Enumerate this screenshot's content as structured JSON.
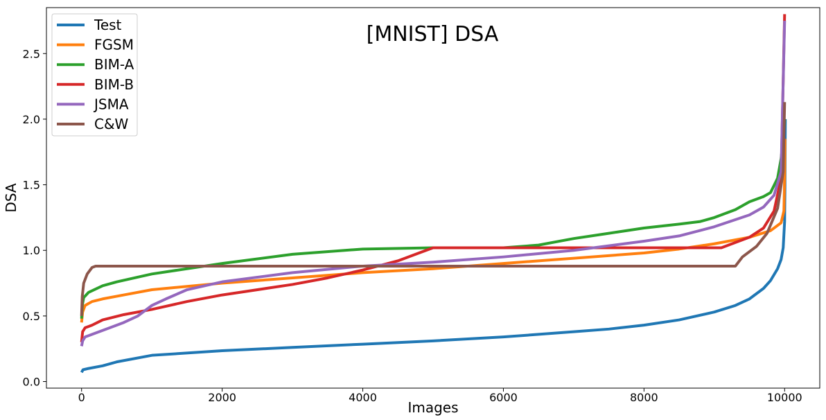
{
  "chart_data": {
    "type": "line",
    "title": "[MNIST] DSA",
    "xlabel": "Images",
    "ylabel": "DSA",
    "xlim": [
      -500,
      10500
    ],
    "ylim": [
      -0.05,
      2.85
    ],
    "xticks": [
      0,
      2000,
      4000,
      6000,
      8000,
      10000
    ],
    "xtick_labels": [
      "0",
      "2000",
      "4000",
      "6000",
      "8000",
      "10000"
    ],
    "yticks": [
      0.0,
      0.5,
      1.0,
      1.5,
      2.0,
      2.5
    ],
    "ytick_labels": [
      "0.0",
      "0.5",
      "1.0",
      "1.5",
      "2.0",
      "2.5"
    ],
    "grid": false,
    "legend_position": "top-left",
    "series": [
      {
        "name": "Test",
        "color": "#1f77b4",
        "points": [
          [
            0,
            0.07
          ],
          [
            20,
            0.09
          ],
          [
            100,
            0.1
          ],
          [
            300,
            0.12
          ],
          [
            500,
            0.15
          ],
          [
            1000,
            0.2
          ],
          [
            2000,
            0.235
          ],
          [
            3000,
            0.26
          ],
          [
            4000,
            0.285
          ],
          [
            5000,
            0.31
          ],
          [
            6000,
            0.34
          ],
          [
            7000,
            0.38
          ],
          [
            7500,
            0.4
          ],
          [
            8000,
            0.43
          ],
          [
            8500,
            0.47
          ],
          [
            9000,
            0.53
          ],
          [
            9300,
            0.58
          ],
          [
            9500,
            0.63
          ],
          [
            9700,
            0.71
          ],
          [
            9800,
            0.77
          ],
          [
            9900,
            0.86
          ],
          [
            9950,
            0.93
          ],
          [
            9980,
            1.02
          ],
          [
            10000,
            1.22
          ],
          [
            10005,
            1.5
          ],
          [
            10010,
            2.0
          ]
        ]
      },
      {
        "name": "FGSM",
        "color": "#ff7f0e",
        "points": [
          [
            0,
            0.45
          ],
          [
            15,
            0.53
          ],
          [
            50,
            0.58
          ],
          [
            150,
            0.61
          ],
          [
            300,
            0.63
          ],
          [
            600,
            0.66
          ],
          [
            1000,
            0.7
          ],
          [
            2000,
            0.75
          ],
          [
            3000,
            0.79
          ],
          [
            4000,
            0.83
          ],
          [
            5000,
            0.86
          ],
          [
            6000,
            0.9
          ],
          [
            7000,
            0.94
          ],
          [
            8000,
            0.98
          ],
          [
            8500,
            1.01
          ],
          [
            9000,
            1.05
          ],
          [
            9500,
            1.1
          ],
          [
            9800,
            1.15
          ],
          [
            9950,
            1.21
          ],
          [
            9990,
            1.3
          ],
          [
            10000,
            1.55
          ],
          [
            10005,
            1.85
          ]
        ]
      },
      {
        "name": "BIM-A",
        "color": "#2ca02c",
        "points": [
          [
            0,
            0.48
          ],
          [
            10,
            0.58
          ],
          [
            30,
            0.64
          ],
          [
            100,
            0.68
          ],
          [
            300,
            0.73
          ],
          [
            500,
            0.76
          ],
          [
            1000,
            0.82
          ],
          [
            2000,
            0.9
          ],
          [
            3000,
            0.97
          ],
          [
            4000,
            1.01
          ],
          [
            5000,
            1.02
          ],
          [
            6000,
            1.02
          ],
          [
            6500,
            1.04
          ],
          [
            7000,
            1.09
          ],
          [
            7500,
            1.13
          ],
          [
            8000,
            1.17
          ],
          [
            8500,
            1.2
          ],
          [
            8800,
            1.22
          ],
          [
            9000,
            1.25
          ],
          [
            9300,
            1.31
          ],
          [
            9500,
            1.37
          ],
          [
            9700,
            1.41
          ],
          [
            9800,
            1.44
          ],
          [
            9900,
            1.55
          ],
          [
            9950,
            1.7
          ],
          [
            9990,
            1.9
          ],
          [
            10000,
            2.0
          ]
        ]
      },
      {
        "name": "BIM-B",
        "color": "#d62728",
        "points": [
          [
            0,
            0.3
          ],
          [
            15,
            0.38
          ],
          [
            50,
            0.41
          ],
          [
            150,
            0.43
          ],
          [
            300,
            0.47
          ],
          [
            600,
            0.51
          ],
          [
            1000,
            0.55
          ],
          [
            1500,
            0.61
          ],
          [
            2000,
            0.66
          ],
          [
            3000,
            0.74
          ],
          [
            3500,
            0.79
          ],
          [
            4000,
            0.85
          ],
          [
            4500,
            0.92
          ],
          [
            4800,
            0.98
          ],
          [
            5000,
            1.02
          ],
          [
            6000,
            1.02
          ],
          [
            7000,
            1.02
          ],
          [
            8000,
            1.02
          ],
          [
            9000,
            1.02
          ],
          [
            9100,
            1.02
          ],
          [
            9300,
            1.06
          ],
          [
            9500,
            1.1
          ],
          [
            9700,
            1.17
          ],
          [
            9850,
            1.3
          ],
          [
            9950,
            1.55
          ],
          [
            10000,
            2.8
          ]
        ]
      },
      {
        "name": "JSMA",
        "color": "#9467bd",
        "points": [
          [
            0,
            0.27
          ],
          [
            15,
            0.31
          ],
          [
            50,
            0.34
          ],
          [
            150,
            0.36
          ],
          [
            300,
            0.39
          ],
          [
            600,
            0.45
          ],
          [
            800,
            0.5
          ],
          [
            1000,
            0.58
          ],
          [
            1200,
            0.63
          ],
          [
            1500,
            0.7
          ],
          [
            2000,
            0.76
          ],
          [
            3000,
            0.83
          ],
          [
            4000,
            0.88
          ],
          [
            5000,
            0.91
          ],
          [
            6000,
            0.95
          ],
          [
            7000,
            1.0
          ],
          [
            8000,
            1.07
          ],
          [
            8500,
            1.11
          ],
          [
            9000,
            1.18
          ],
          [
            9500,
            1.27
          ],
          [
            9700,
            1.33
          ],
          [
            9850,
            1.42
          ],
          [
            9950,
            1.6
          ],
          [
            10000,
            2.75
          ]
        ]
      },
      {
        "name": "C&W",
        "color": "#8c564b",
        "points": [
          [
            0,
            0.5
          ],
          [
            10,
            0.65
          ],
          [
            30,
            0.75
          ],
          [
            80,
            0.82
          ],
          [
            150,
            0.87
          ],
          [
            200,
            0.88
          ],
          [
            2000,
            0.88
          ],
          [
            4000,
            0.88
          ],
          [
            6000,
            0.88
          ],
          [
            8000,
            0.88
          ],
          [
            9300,
            0.88
          ],
          [
            9400,
            0.95
          ],
          [
            9600,
            1.03
          ],
          [
            9750,
            1.13
          ],
          [
            9900,
            1.32
          ],
          [
            9980,
            1.6
          ],
          [
            10000,
            2.13
          ]
        ]
      }
    ]
  }
}
